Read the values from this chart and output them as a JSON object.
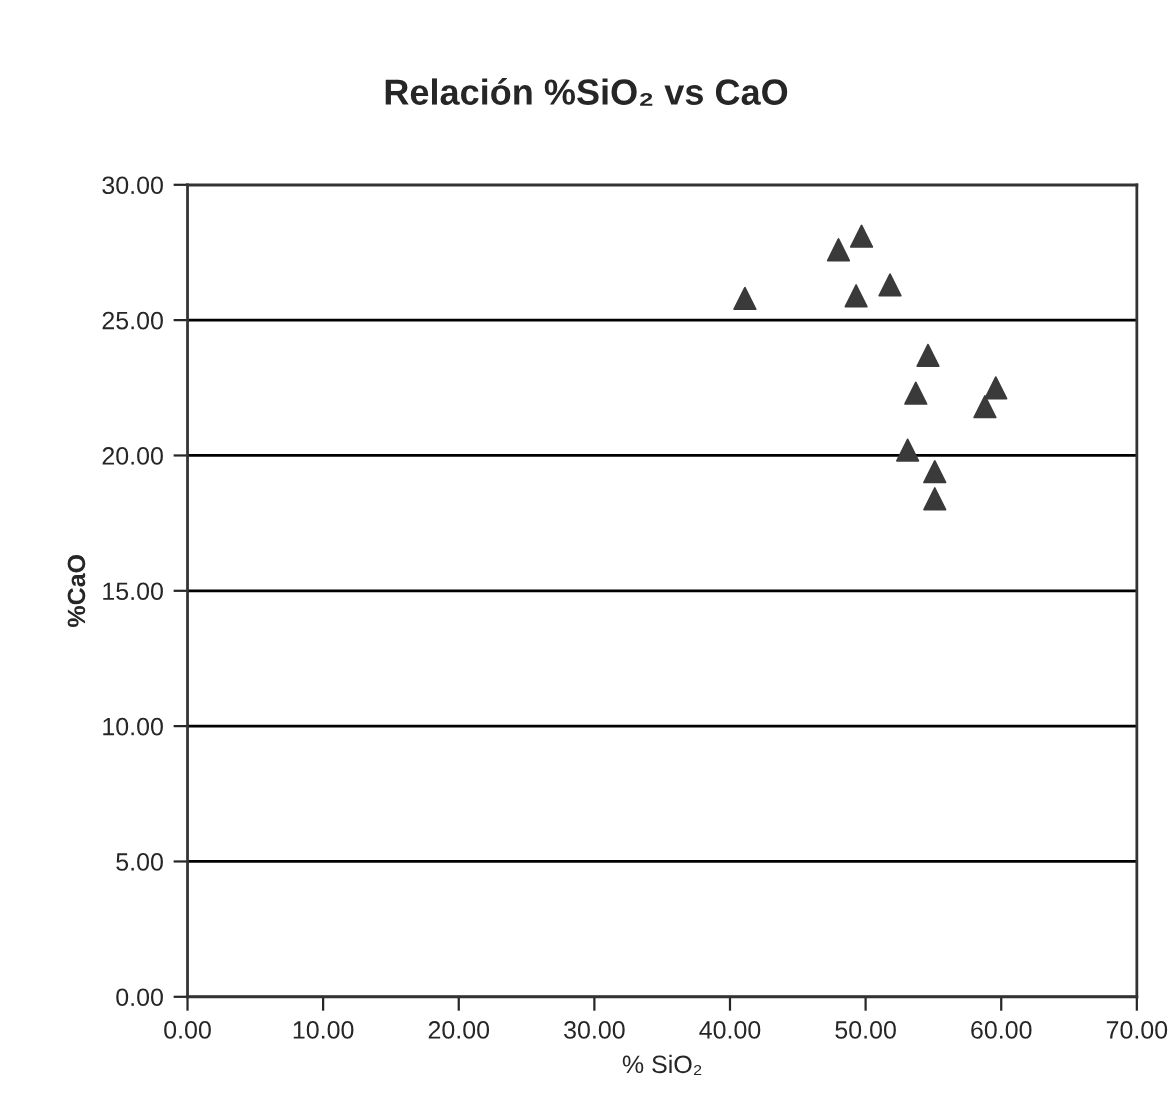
{
  "chart_data": {
    "type": "scatter",
    "title": "Relación %SiO₂ vs CaO",
    "xlabel": "% SiO₂",
    "ylabel": "%CaO",
    "series": [
      {
        "color": "#3a3a3a",
        "x": [
          41.1,
          48.0,
          49.7,
          49.3,
          51.8,
          54.6,
          53.7,
          53.1,
          59.6,
          58.8,
          55.1,
          55.1
        ],
        "values": [
          25.8,
          27.6,
          28.1,
          25.9,
          26.3,
          23.7,
          22.3,
          20.2,
          22.5,
          21.8,
          19.4,
          18.4
        ]
      }
    ],
    "marker": "triangle",
    "grid": "y",
    "legend": false,
    "xlim": [
      0,
      70
    ],
    "ylim": [
      0,
      30
    ],
    "xticks": [
      {
        "value": 0,
        "label": "0.00"
      },
      {
        "value": 10,
        "label": "10.00"
      },
      {
        "value": 20,
        "label": "20.00"
      },
      {
        "value": 30,
        "label": "30.00"
      },
      {
        "value": 40,
        "label": "40.00"
      },
      {
        "value": 50,
        "label": "50.00"
      },
      {
        "value": 60,
        "label": "60.00"
      },
      {
        "value": 70,
        "label": "70.00"
      }
    ],
    "yticks": [
      {
        "value": 0,
        "label": "0.00"
      },
      {
        "value": 5,
        "label": "5.00"
      },
      {
        "value": 10,
        "label": "10.00"
      },
      {
        "value": 15,
        "label": "15.00"
      },
      {
        "value": 20,
        "label": "20.00"
      },
      {
        "value": 25,
        "label": "25.00"
      },
      {
        "value": 30,
        "label": "30.00"
      }
    ]
  }
}
